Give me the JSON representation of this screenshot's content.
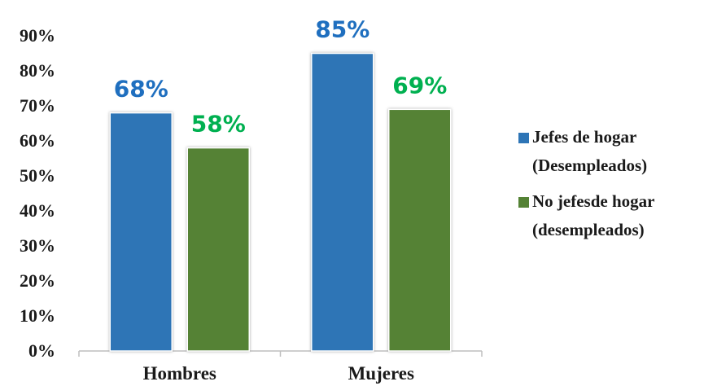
{
  "chart_data": {
    "type": "bar",
    "categories": [
      "Hombres",
      "Mujeres"
    ],
    "series": [
      {
        "name": "Jefes de hogar (Desempleados)",
        "legend_lines": [
          "Jefes de hogar",
          "(Desempleados)"
        ],
        "values": [
          68,
          85
        ],
        "labels": [
          "68%",
          "85%"
        ],
        "color": "#2E75B6",
        "label_color": "#1F6FBF"
      },
      {
        "name": "No jefesde hogar (desempleados)",
        "legend_lines": [
          "No jefesde hogar",
          "(desempleados)"
        ],
        "values": [
          58,
          69
        ],
        "labels": [
          "58%",
          "69%"
        ],
        "color": "#548235",
        "label_color": "#00B050"
      }
    ],
    "yticks": [
      "0%",
      "10%",
      "20%",
      "30%",
      "40%",
      "50%",
      "60%",
      "70%",
      "80%",
      "90%"
    ],
    "ylim": [
      0,
      90
    ],
    "grid": false,
    "legend_position": "right"
  }
}
